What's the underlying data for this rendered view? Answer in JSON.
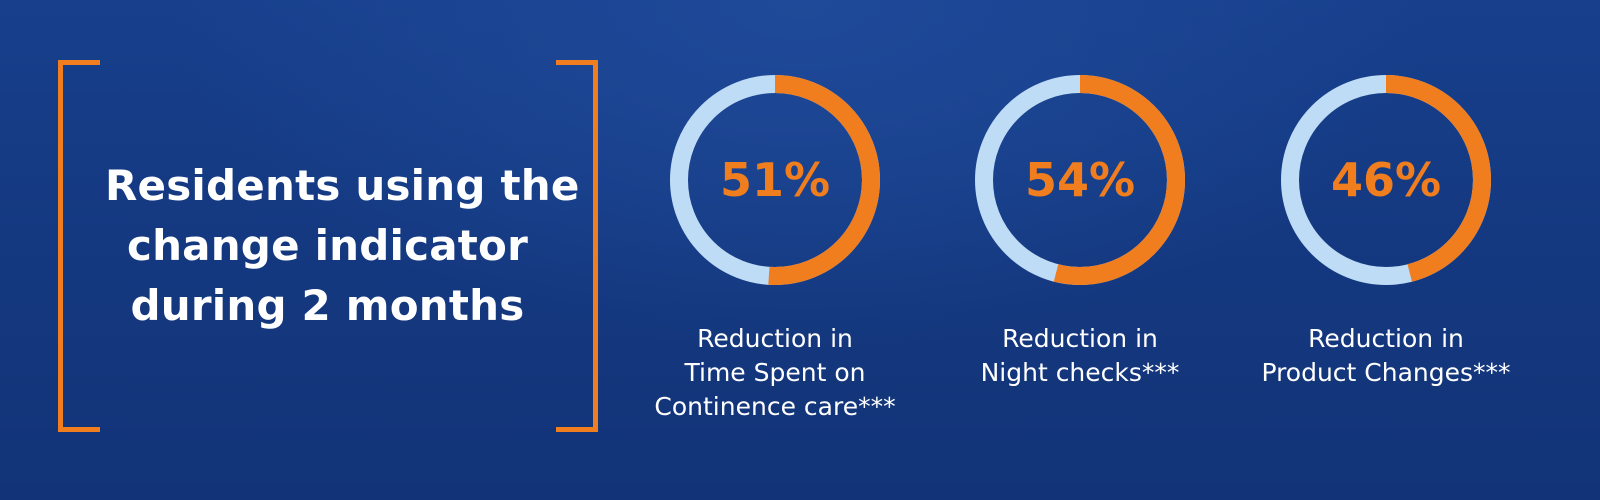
{
  "headline": {
    "lines": [
      "Residents using the",
      "change indicator",
      "during 2 months"
    ]
  },
  "colors": {
    "accent": "#f07d1e",
    "track": "#bedcf5",
    "background": "#163c86",
    "text": "#ffffff"
  },
  "chart_data": {
    "type": "pie",
    "title": "",
    "items": [
      {
        "value": 51,
        "label": "51%",
        "caption_lines": [
          "Reduction in",
          "Time Spent on",
          "Continence care***"
        ]
      },
      {
        "value": 54,
        "label": "54%",
        "caption_lines": [
          "Reduction in",
          "Night checks***"
        ]
      },
      {
        "value": 46,
        "label": "46%",
        "caption_lines": [
          "Reduction in",
          "Product Changes***"
        ]
      }
    ]
  }
}
